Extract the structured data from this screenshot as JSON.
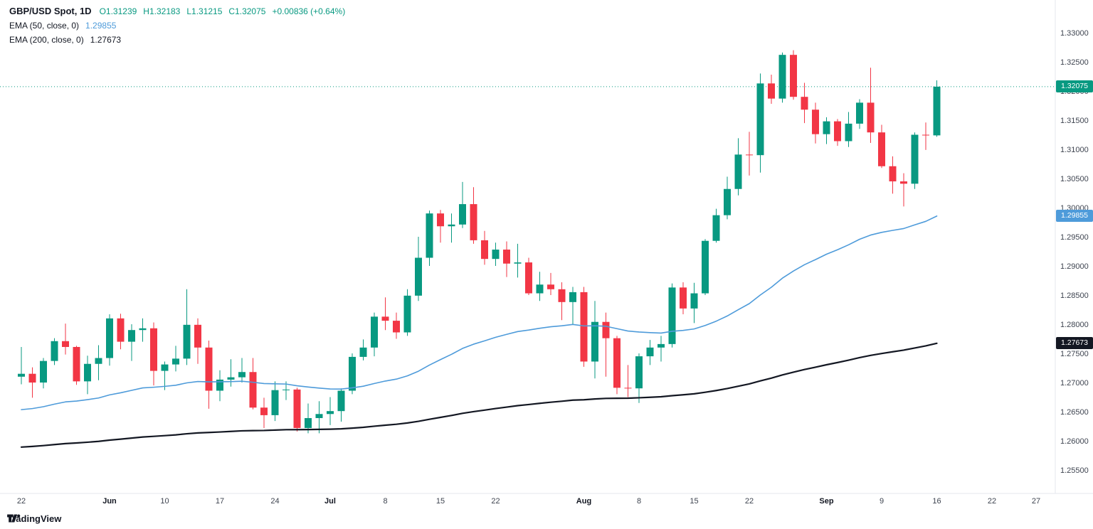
{
  "colors": {
    "up": "#089981",
    "down": "#F23645",
    "ema50": "#4E9BDA",
    "ema200": "#131722",
    "axis_text": "#3e4450",
    "axis_text_major": "#131722",
    "badge_text": "#ffffff",
    "divider": "#e4e7ee"
  },
  "legend": {
    "symbol": "GBP/USD Spot, 1D",
    "ohlc": {
      "open": "O1.31239",
      "high": "H1.32183",
      "low": "L1.31215",
      "close": "C1.32075",
      "change": "+0.00836 (+0.64%)"
    },
    "ema50": {
      "label": "EMA (50, close, 0)",
      "value": "1.29855"
    },
    "ema200": {
      "label": "EMA (200, close, 0)",
      "value": "1.27673"
    }
  },
  "watermark_logo": {
    "text": "TradingView"
  },
  "price_badges": [
    {
      "name": "current-price",
      "text": "1.32075",
      "value": 1.32075,
      "color_key": "up"
    },
    {
      "name": "ema50",
      "text": "1.29855",
      "value": 1.29855,
      "color_key": "ema50"
    },
    {
      "name": "ema200",
      "text": "1.27673",
      "value": 1.27673,
      "color_key": "ema200"
    }
  ],
  "chart_data": {
    "type": "candlestick",
    "title": "GBP/USD Spot, 1D",
    "symbol": "GBP/USD Spot",
    "timeframe": "1D",
    "grid": false,
    "ylim": [
      1.255,
      1.33
    ],
    "current_price": 1.32075,
    "y_ticks": [
      "1.33000",
      "1.32500",
      "1.32000",
      "1.31500",
      "1.31000",
      "1.30500",
      "1.30000",
      "1.29500",
      "1.29000",
      "1.28500",
      "1.28000",
      "1.27500",
      "1.27000",
      "1.26500",
      "1.26000",
      "1.25500"
    ],
    "time_axis": [
      {
        "label": "22",
        "index": 0,
        "major": false
      },
      {
        "label": "Jun",
        "index": 8,
        "major": true
      },
      {
        "label": "10",
        "index": 13,
        "major": false
      },
      {
        "label": "17",
        "index": 18,
        "major": false
      },
      {
        "label": "24",
        "index": 23,
        "major": false
      },
      {
        "label": "Jul",
        "index": 28,
        "major": true
      },
      {
        "label": "8",
        "index": 33,
        "major": false
      },
      {
        "label": "15",
        "index": 38,
        "major": false
      },
      {
        "label": "22",
        "index": 43,
        "major": false
      },
      {
        "label": "Aug",
        "index": 51,
        "major": true
      },
      {
        "label": "8",
        "index": 56,
        "major": false
      },
      {
        "label": "15",
        "index": 61,
        "major": false
      },
      {
        "label": "22",
        "index": 66,
        "major": false
      },
      {
        "label": "Sep",
        "index": 73,
        "major": true
      },
      {
        "label": "9",
        "index": 78,
        "major": false
      },
      {
        "label": "16",
        "index": 83,
        "major": false
      },
      {
        "label": "22",
        "index": 88,
        "major": false
      },
      {
        "label": "27",
        "index": 92,
        "major": false
      }
    ],
    "candles": [
      {
        "d": "May 22",
        "o": 1.271,
        "h": 1.2761,
        "l": 1.2697,
        "c": 1.2715
      },
      {
        "d": "May 23",
        "o": 1.2715,
        "h": 1.2726,
        "l": 1.2674,
        "c": 1.27
      },
      {
        "d": "May 24",
        "o": 1.27,
        "h": 1.2742,
        "l": 1.269,
        "c": 1.2737
      },
      {
        "d": "May 27",
        "o": 1.2737,
        "h": 1.2776,
        "l": 1.273,
        "c": 1.2771
      },
      {
        "d": "May 28",
        "o": 1.2771,
        "h": 1.2801,
        "l": 1.2748,
        "c": 1.2761
      },
      {
        "d": "May 29",
        "o": 1.2761,
        "h": 1.2763,
        "l": 1.2696,
        "c": 1.2702
      },
      {
        "d": "May 30",
        "o": 1.2702,
        "h": 1.2746,
        "l": 1.268,
        "c": 1.2732
      },
      {
        "d": "May 31",
        "o": 1.2732,
        "h": 1.2764,
        "l": 1.2704,
        "c": 1.2742
      },
      {
        "d": "Jun 3",
        "o": 1.2742,
        "h": 1.2817,
        "l": 1.2729,
        "c": 1.281
      },
      {
        "d": "Jun 4",
        "o": 1.281,
        "h": 1.2818,
        "l": 1.2757,
        "c": 1.277
      },
      {
        "d": "Jun 5",
        "o": 1.277,
        "h": 1.28,
        "l": 1.2737,
        "c": 1.279
      },
      {
        "d": "Jun 6",
        "o": 1.279,
        "h": 1.281,
        "l": 1.277,
        "c": 1.2793
      },
      {
        "d": "Jun 7",
        "o": 1.2793,
        "h": 1.2803,
        "l": 1.2695,
        "c": 1.272
      },
      {
        "d": "Jun 10",
        "o": 1.272,
        "h": 1.2736,
        "l": 1.2687,
        "c": 1.2731
      },
      {
        "d": "Jun 11",
        "o": 1.2731,
        "h": 1.2763,
        "l": 1.2719,
        "c": 1.2741
      },
      {
        "d": "Jun 12",
        "o": 1.2741,
        "h": 1.286,
        "l": 1.273,
        "c": 1.2799
      },
      {
        "d": "Jun 13",
        "o": 1.2799,
        "h": 1.281,
        "l": 1.2732,
        "c": 1.276
      },
      {
        "d": "Jun 14",
        "o": 1.276,
        "h": 1.2772,
        "l": 1.2655,
        "c": 1.2686
      },
      {
        "d": "Jun 17",
        "o": 1.2686,
        "h": 1.2721,
        "l": 1.2668,
        "c": 1.2705
      },
      {
        "d": "Jun 18",
        "o": 1.2705,
        "h": 1.274,
        "l": 1.2693,
        "c": 1.2709
      },
      {
        "d": "Jun 19",
        "o": 1.2709,
        "h": 1.2742,
        "l": 1.27,
        "c": 1.2718
      },
      {
        "d": "Jun 20",
        "o": 1.2718,
        "h": 1.2742,
        "l": 1.2654,
        "c": 1.2657
      },
      {
        "d": "Jun 21",
        "o": 1.2657,
        "h": 1.2674,
        "l": 1.2622,
        "c": 1.2644
      },
      {
        "d": "Jun 24",
        "o": 1.2644,
        "h": 1.2702,
        "l": 1.2634,
        "c": 1.2687
      },
      {
        "d": "Jun 25",
        "o": 1.2687,
        "h": 1.2702,
        "l": 1.267,
        "c": 1.2688
      },
      {
        "d": "Jun 26",
        "o": 1.2688,
        "h": 1.2691,
        "l": 1.2616,
        "c": 1.2622
      },
      {
        "d": "Jun 27",
        "o": 1.2622,
        "h": 1.2664,
        "l": 1.2613,
        "c": 1.2639
      },
      {
        "d": "Jun 28",
        "o": 1.2639,
        "h": 1.2668,
        "l": 1.2613,
        "c": 1.2646
      },
      {
        "d": "Jul 1",
        "o": 1.2646,
        "h": 1.2675,
        "l": 1.2627,
        "c": 1.2651
      },
      {
        "d": "Jul 2",
        "o": 1.2651,
        "h": 1.269,
        "l": 1.2633,
        "c": 1.2686
      },
      {
        "d": "Jul 3",
        "o": 1.2686,
        "h": 1.275,
        "l": 1.268,
        "c": 1.2744
      },
      {
        "d": "Jul 4",
        "o": 1.2744,
        "h": 1.2774,
        "l": 1.2738,
        "c": 1.276
      },
      {
        "d": "Jul 5",
        "o": 1.276,
        "h": 1.282,
        "l": 1.2745,
        "c": 1.2813
      },
      {
        "d": "Jul 8",
        "o": 1.2813,
        "h": 1.2846,
        "l": 1.279,
        "c": 1.2806
      },
      {
        "d": "Jul 9",
        "o": 1.2806,
        "h": 1.282,
        "l": 1.2775,
        "c": 1.2786
      },
      {
        "d": "Jul 10",
        "o": 1.2786,
        "h": 1.286,
        "l": 1.278,
        "c": 1.2849
      },
      {
        "d": "Jul 11",
        "o": 1.2849,
        "h": 1.295,
        "l": 1.284,
        "c": 1.2914
      },
      {
        "d": "Jul 12",
        "o": 1.2914,
        "h": 1.2995,
        "l": 1.29,
        "c": 1.299
      },
      {
        "d": "Jul 15",
        "o": 1.299,
        "h": 1.2996,
        "l": 1.294,
        "c": 1.2968
      },
      {
        "d": "Jul 16",
        "o": 1.2968,
        "h": 1.299,
        "l": 1.294,
        "c": 1.2971
      },
      {
        "d": "Jul 17",
        "o": 1.2971,
        "h": 1.3044,
        "l": 1.2965,
        "c": 1.3006
      },
      {
        "d": "Jul 18",
        "o": 1.3006,
        "h": 1.3035,
        "l": 1.2938,
        "c": 1.2944
      },
      {
        "d": "Jul 19",
        "o": 1.2944,
        "h": 1.296,
        "l": 1.2902,
        "c": 1.2912
      },
      {
        "d": "Jul 22",
        "o": 1.2912,
        "h": 1.294,
        "l": 1.29,
        "c": 1.2928
      },
      {
        "d": "Jul 23",
        "o": 1.2928,
        "h": 1.2942,
        "l": 1.2881,
        "c": 1.2904
      },
      {
        "d": "Jul 24",
        "o": 1.2904,
        "h": 1.2938,
        "l": 1.288,
        "c": 1.2906
      },
      {
        "d": "Jul 25",
        "o": 1.2906,
        "h": 1.2914,
        "l": 1.285,
        "c": 1.2853
      },
      {
        "d": "Jul 26",
        "o": 1.2853,
        "h": 1.289,
        "l": 1.284,
        "c": 1.2868
      },
      {
        "d": "Jul 29",
        "o": 1.2868,
        "h": 1.2888,
        "l": 1.285,
        "c": 1.286
      },
      {
        "d": "Jul 30",
        "o": 1.286,
        "h": 1.2872,
        "l": 1.2807,
        "c": 1.2838
      },
      {
        "d": "Jul 31",
        "o": 1.2838,
        "h": 1.2864,
        "l": 1.28,
        "c": 1.2855
      },
      {
        "d": "Aug 1",
        "o": 1.2855,
        "h": 1.2864,
        "l": 1.2727,
        "c": 1.2736
      },
      {
        "d": "Aug 2",
        "o": 1.2736,
        "h": 1.284,
        "l": 1.2707,
        "c": 1.2804
      },
      {
        "d": "Aug 5",
        "o": 1.2804,
        "h": 1.282,
        "l": 1.271,
        "c": 1.2776
      },
      {
        "d": "Aug 6",
        "o": 1.2776,
        "h": 1.278,
        "l": 1.268,
        "c": 1.2691
      },
      {
        "d": "Aug 7",
        "o": 1.2691,
        "h": 1.273,
        "l": 1.2675,
        "c": 1.269
      },
      {
        "d": "Aug 8",
        "o": 1.269,
        "h": 1.275,
        "l": 1.2665,
        "c": 1.2745
      },
      {
        "d": "Aug 9",
        "o": 1.2745,
        "h": 1.2773,
        "l": 1.273,
        "c": 1.276
      },
      {
        "d": "Aug 12",
        "o": 1.276,
        "h": 1.278,
        "l": 1.2736,
        "c": 1.2766
      },
      {
        "d": "Aug 13",
        "o": 1.2766,
        "h": 1.287,
        "l": 1.276,
        "c": 1.2863
      },
      {
        "d": "Aug 14",
        "o": 1.2863,
        "h": 1.2872,
        "l": 1.2817,
        "c": 1.2827
      },
      {
        "d": "Aug 15",
        "o": 1.2827,
        "h": 1.2871,
        "l": 1.2802,
        "c": 1.2853
      },
      {
        "d": "Aug 16",
        "o": 1.2853,
        "h": 1.2946,
        "l": 1.285,
        "c": 1.2943
      },
      {
        "d": "Aug 19",
        "o": 1.2943,
        "h": 1.2998,
        "l": 1.294,
        "c": 1.2987
      },
      {
        "d": "Aug 20",
        "o": 1.2987,
        "h": 1.3053,
        "l": 1.298,
        "c": 1.3032
      },
      {
        "d": "Aug 21",
        "o": 1.3032,
        "h": 1.3119,
        "l": 1.3021,
        "c": 1.3091
      },
      {
        "d": "Aug 22",
        "o": 1.3091,
        "h": 1.313,
        "l": 1.3055,
        "c": 1.309
      },
      {
        "d": "Aug 23",
        "o": 1.309,
        "h": 1.323,
        "l": 1.306,
        "c": 1.3213
      },
      {
        "d": "Aug 26",
        "o": 1.3213,
        "h": 1.3228,
        "l": 1.3178,
        "c": 1.3187
      },
      {
        "d": "Aug 27",
        "o": 1.3187,
        "h": 1.3266,
        "l": 1.318,
        "c": 1.3262
      },
      {
        "d": "Aug 28",
        "o": 1.3262,
        "h": 1.327,
        "l": 1.3185,
        "c": 1.319
      },
      {
        "d": "Aug 29",
        "o": 1.319,
        "h": 1.3214,
        "l": 1.3145,
        "c": 1.3168
      },
      {
        "d": "Aug 30",
        "o": 1.3168,
        "h": 1.318,
        "l": 1.311,
        "c": 1.3126
      },
      {
        "d": "Sep 2",
        "o": 1.3126,
        "h": 1.3155,
        "l": 1.3109,
        "c": 1.3148
      },
      {
        "d": "Sep 3",
        "o": 1.3148,
        "h": 1.3152,
        "l": 1.3106,
        "c": 1.3114
      },
      {
        "d": "Sep 4",
        "o": 1.3114,
        "h": 1.3164,
        "l": 1.3104,
        "c": 1.3144
      },
      {
        "d": "Sep 5",
        "o": 1.3144,
        "h": 1.3186,
        "l": 1.3135,
        "c": 1.318
      },
      {
        "d": "Sep 6",
        "o": 1.318,
        "h": 1.324,
        "l": 1.3111,
        "c": 1.3129
      },
      {
        "d": "Sep 9",
        "o": 1.3129,
        "h": 1.3142,
        "l": 1.3068,
        "c": 1.3071
      },
      {
        "d": "Sep 10",
        "o": 1.3071,
        "h": 1.3088,
        "l": 1.3024,
        "c": 1.3045
      },
      {
        "d": "Sep 11",
        "o": 1.3045,
        "h": 1.3059,
        "l": 1.3002,
        "c": 1.3041
      },
      {
        "d": "Sep 12",
        "o": 1.3041,
        "h": 1.3129,
        "l": 1.3032,
        "c": 1.3125
      },
      {
        "d": "Sep 13",
        "o": 1.3125,
        "h": 1.3146,
        "l": 1.3099,
        "c": 1.3124
      },
      {
        "d": "Sep 16",
        "o": 1.31239,
        "h": 1.32183,
        "l": 1.31215,
        "c": 1.32075
      }
    ],
    "overlays": [
      {
        "name": "EMA 50",
        "slug": "ema50",
        "type": "ema",
        "period": 50,
        "seed": 1.2651,
        "last": 1.29855,
        "color_key": "ema50",
        "width": 1.6
      },
      {
        "name": "EMA 200",
        "slug": "ema200",
        "type": "ema",
        "period": 200,
        "seed": 1.2588,
        "last": 1.27673,
        "color_key": "ema200",
        "width": 2.2
      }
    ]
  }
}
